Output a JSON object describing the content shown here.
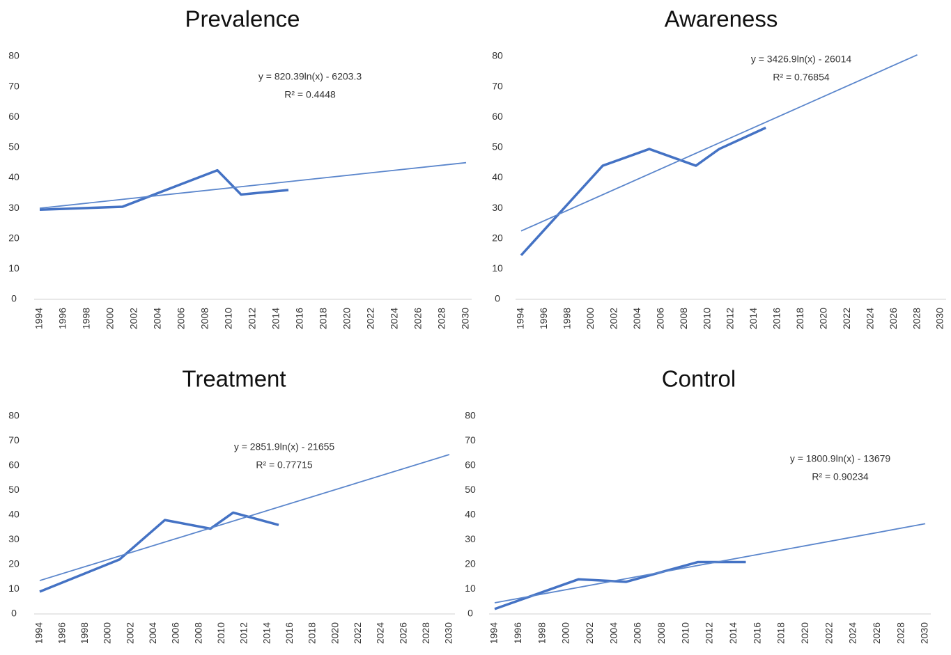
{
  "chart_data": [
    {
      "type": "line",
      "title": "Prevalence",
      "xlim": [
        1994,
        2030
      ],
      "xticks": [
        1994,
        1996,
        1998,
        2000,
        2002,
        2004,
        2006,
        2008,
        2010,
        2012,
        2014,
        2016,
        2018,
        2020,
        2022,
        2024,
        2026,
        2028,
        2030
      ],
      "ylim": [
        0,
        80
      ],
      "yticks": [
        0,
        10,
        20,
        30,
        40,
        50,
        60,
        70,
        80
      ],
      "annotations": [
        "y = 820.39ln(x) - 6203.3",
        "R² = 0.4448"
      ],
      "series": [
        {
          "color": "#4472c4",
          "width": 3.5,
          "x": [
            1994,
            2001,
            2009,
            2011,
            2015
          ],
          "values": [
            29.5,
            30.5,
            42.5,
            34.5,
            36
          ]
        },
        {
          "color": "#5b86cc",
          "width": 1.8,
          "x": [
            1994,
            2030
          ],
          "values": [
            30,
            45
          ]
        }
      ]
    },
    {
      "type": "line",
      "title": "Awareness",
      "xlim": [
        1994,
        2030
      ],
      "xticks": [
        1994,
        1996,
        1998,
        2000,
        2002,
        2004,
        2006,
        2008,
        2010,
        2012,
        2014,
        2016,
        2018,
        2020,
        2022,
        2024,
        2026,
        2028,
        2030
      ],
      "ylim": [
        0,
        80
      ],
      "yticks": [
        0,
        10,
        20,
        30,
        40,
        50,
        60,
        70,
        80
      ],
      "annotations": [
        "y = 3426.9ln(x) - 26014",
        "R² = 0.76854"
      ],
      "series": [
        {
          "color": "#4472c4",
          "width": 3.5,
          "x": [
            1994,
            2001,
            2005,
            2009,
            2011,
            2015
          ],
          "values": [
            14.5,
            44,
            49.5,
            44,
            49.5,
            56.5
          ]
        },
        {
          "color": "#5b86cc",
          "width": 1.8,
          "x": [
            1994,
            2028
          ],
          "values": [
            22.5,
            80.5
          ]
        }
      ]
    },
    {
      "type": "line",
      "title": "Treatment",
      "xlim": [
        1994,
        2030
      ],
      "xticks": [
        1994,
        1996,
        1998,
        2000,
        2002,
        2004,
        2006,
        2008,
        2010,
        2012,
        2014,
        2016,
        2018,
        2020,
        2022,
        2024,
        2026,
        2028,
        2030
      ],
      "ylim": [
        0,
        80
      ],
      "yticks": [
        0,
        10,
        20,
        30,
        40,
        50,
        60,
        70,
        80
      ],
      "annotations": [
        "y = 2851.9ln(x) - 21655",
        "R² = 0.77715"
      ],
      "series": [
        {
          "color": "#4472c4",
          "width": 3.5,
          "x": [
            1994,
            2001,
            2005,
            2009,
            2011,
            2015
          ],
          "values": [
            9,
            22,
            38,
            34.5,
            41,
            36
          ]
        },
        {
          "color": "#5b86cc",
          "width": 1.8,
          "x": [
            1994,
            2030
          ],
          "values": [
            13.5,
            64.5
          ]
        }
      ]
    },
    {
      "type": "line",
      "title": "Control",
      "xlim": [
        1994,
        2030
      ],
      "xticks": [
        1994,
        1996,
        1998,
        2000,
        2002,
        2004,
        2006,
        2008,
        2010,
        2012,
        2014,
        2016,
        2018,
        2020,
        2022,
        2024,
        2026,
        2028,
        2030
      ],
      "ylim": [
        0,
        80
      ],
      "yticks": [
        0,
        10,
        20,
        30,
        40,
        50,
        60,
        70,
        80
      ],
      "annotations": [
        "y = 1800.9ln(x) - 13679",
        "R² = 0.90234"
      ],
      "series": [
        {
          "color": "#4472c4",
          "width": 3.5,
          "x": [
            1994,
            2001,
            2005,
            2011,
            2015
          ],
          "values": [
            2,
            14,
            13,
            21,
            21
          ]
        },
        {
          "color": "#5b86cc",
          "width": 1.8,
          "x": [
            1994,
            2030
          ],
          "values": [
            4.5,
            36.5
          ]
        }
      ]
    }
  ]
}
